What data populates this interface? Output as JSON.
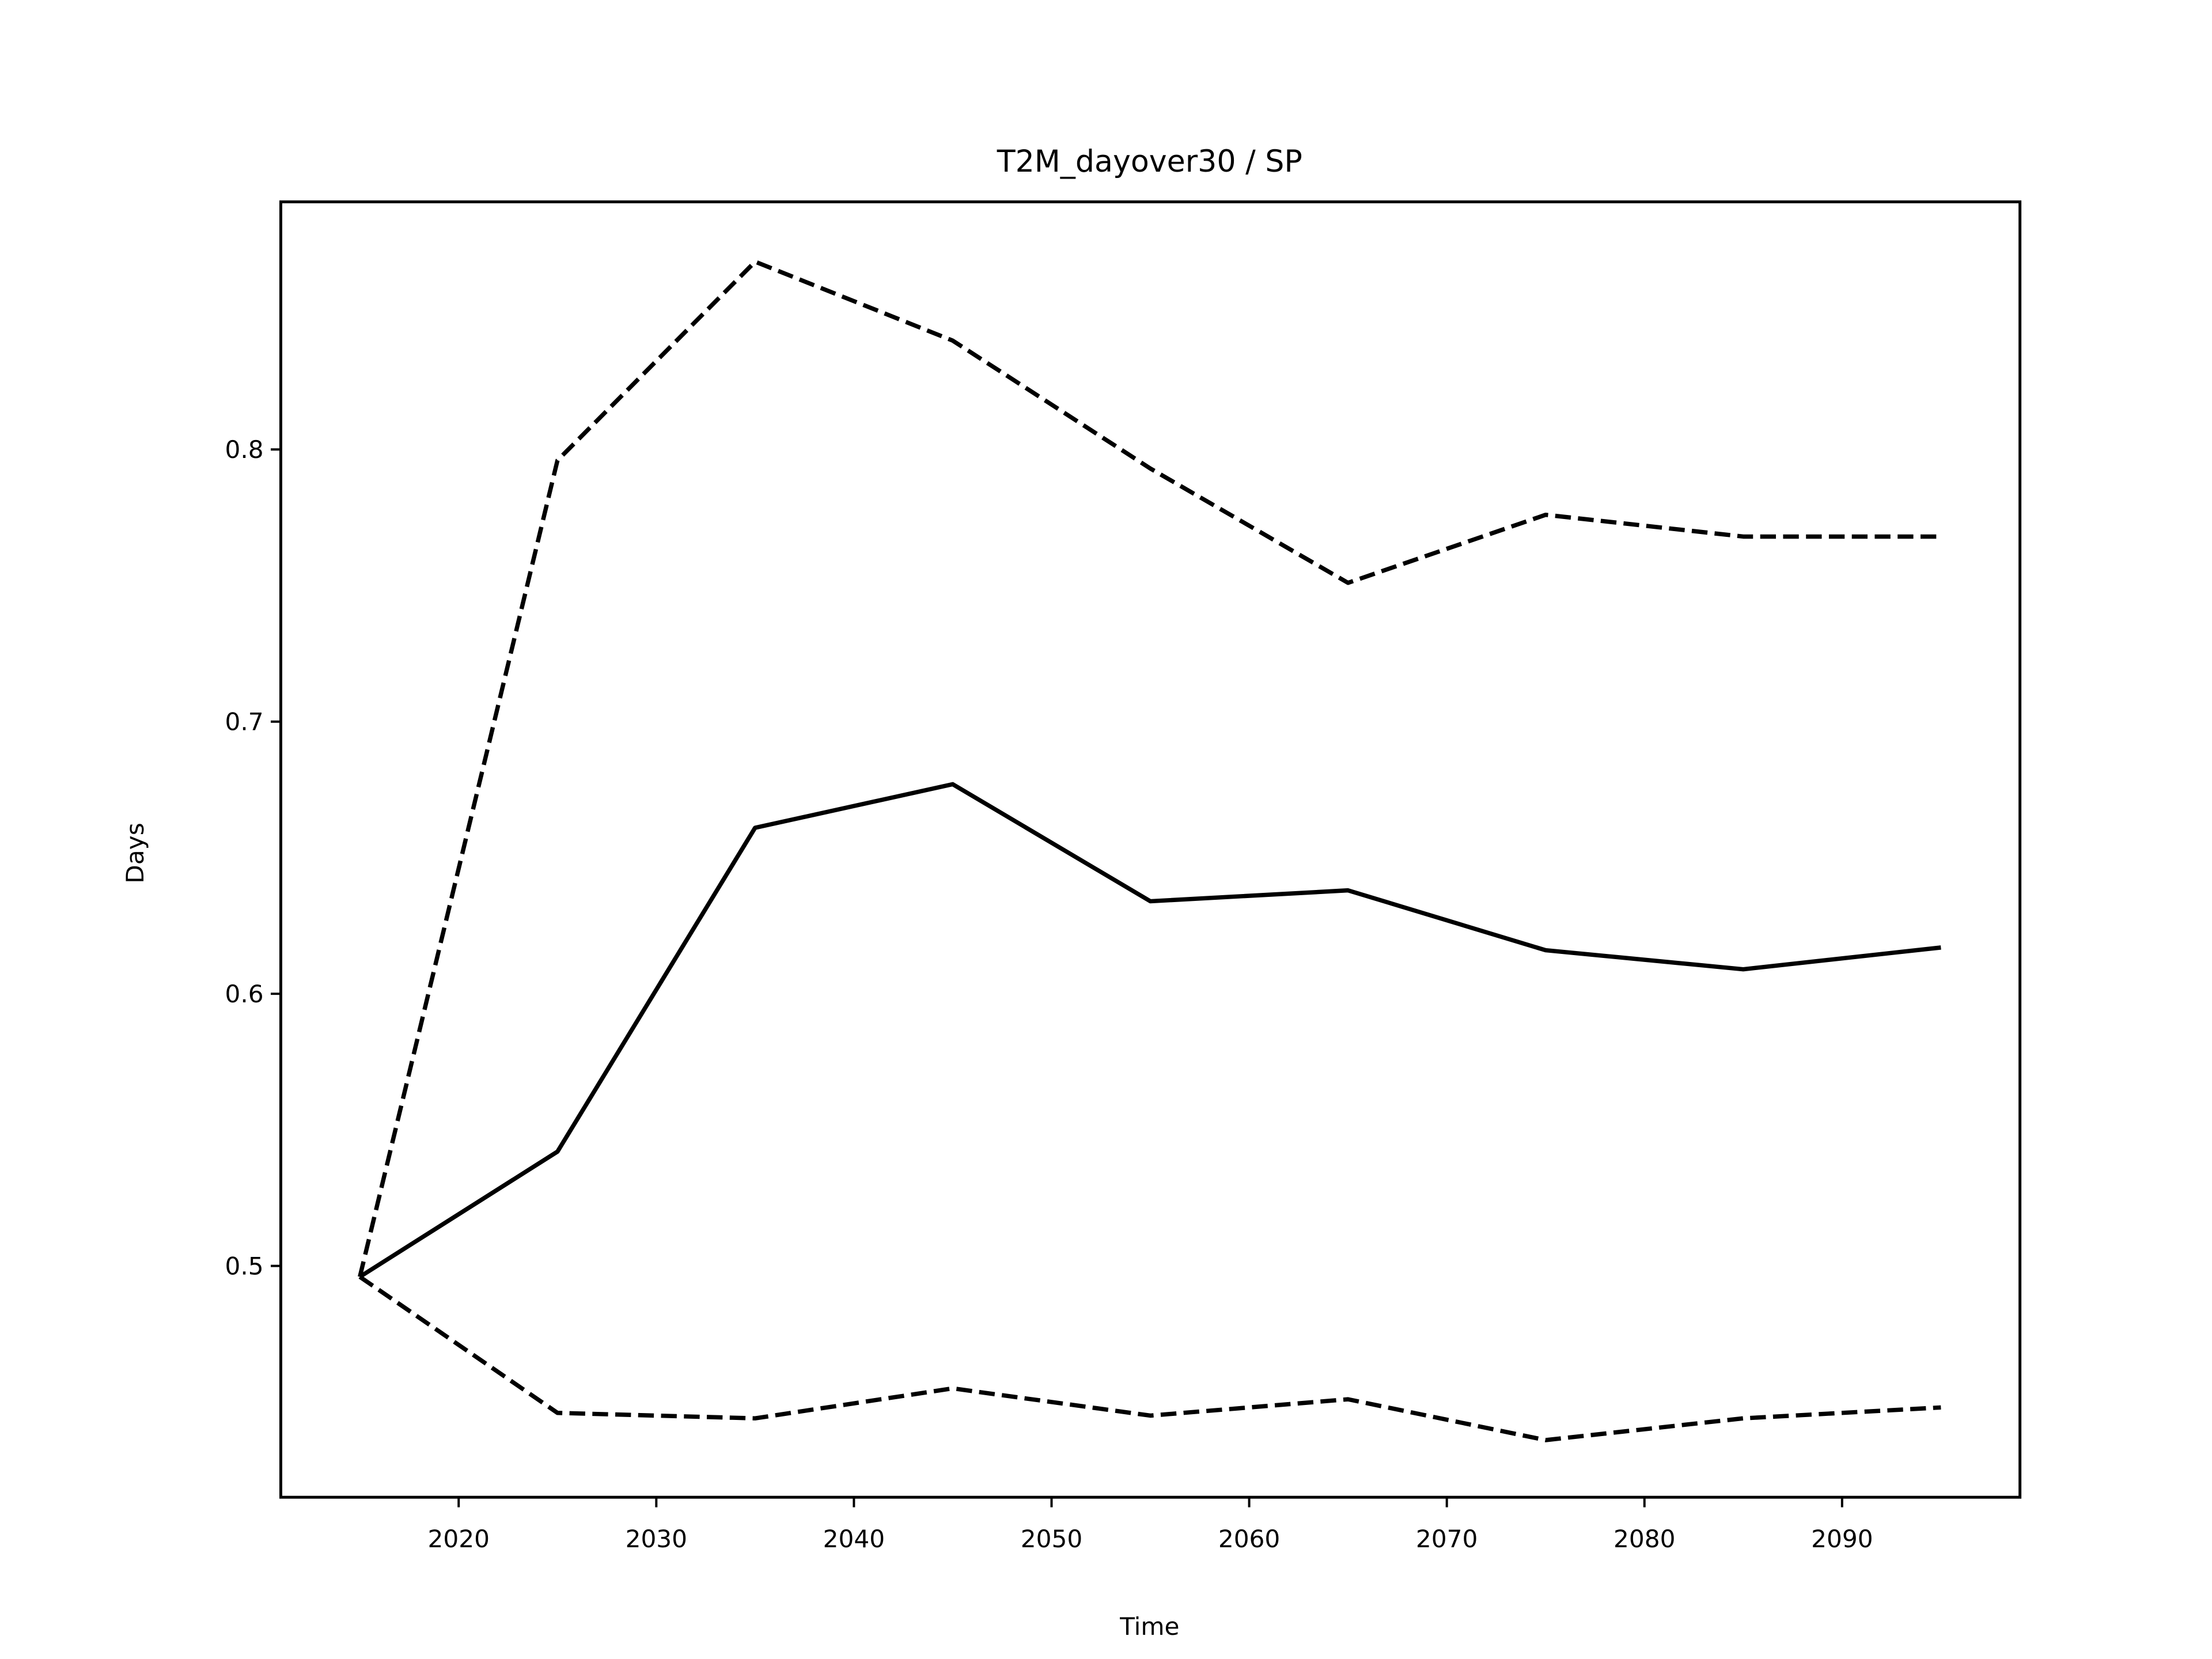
{
  "chart_data": {
    "type": "line",
    "title": "T2M_dayover30 / SP",
    "xlabel": "Time",
    "ylabel": "Days",
    "x": [
      2015,
      2025,
      2035,
      2045,
      2055,
      2065,
      2075,
      2085,
      2095
    ],
    "series": [
      {
        "color": "#000000",
        "linestyle": "solid",
        "values": [
          0.496,
          0.542,
          0.661,
          0.677,
          0.634,
          0.638,
          0.616,
          0.609,
          0.617
        ]
      },
      {
        "color": "#000000",
        "linestyle": "dashed",
        "values": [
          0.496,
          0.796,
          0.869,
          0.84,
          0.793,
          0.751,
          0.776,
          0.768,
          0.768
        ]
      },
      {
        "color": "#000000",
        "linestyle": "dashed",
        "values": [
          0.496,
          0.446,
          0.444,
          0.455,
          0.445,
          0.451,
          0.436,
          0.444,
          0.448
        ]
      }
    ],
    "xlim": [
      2011,
      2099
    ],
    "ylim": [
      0.415,
      0.891
    ],
    "xticks": [
      2020,
      2030,
      2040,
      2050,
      2060,
      2070,
      2080,
      2090
    ],
    "yticks": [
      0.5,
      0.6,
      0.7,
      0.8
    ],
    "grid": false
  }
}
